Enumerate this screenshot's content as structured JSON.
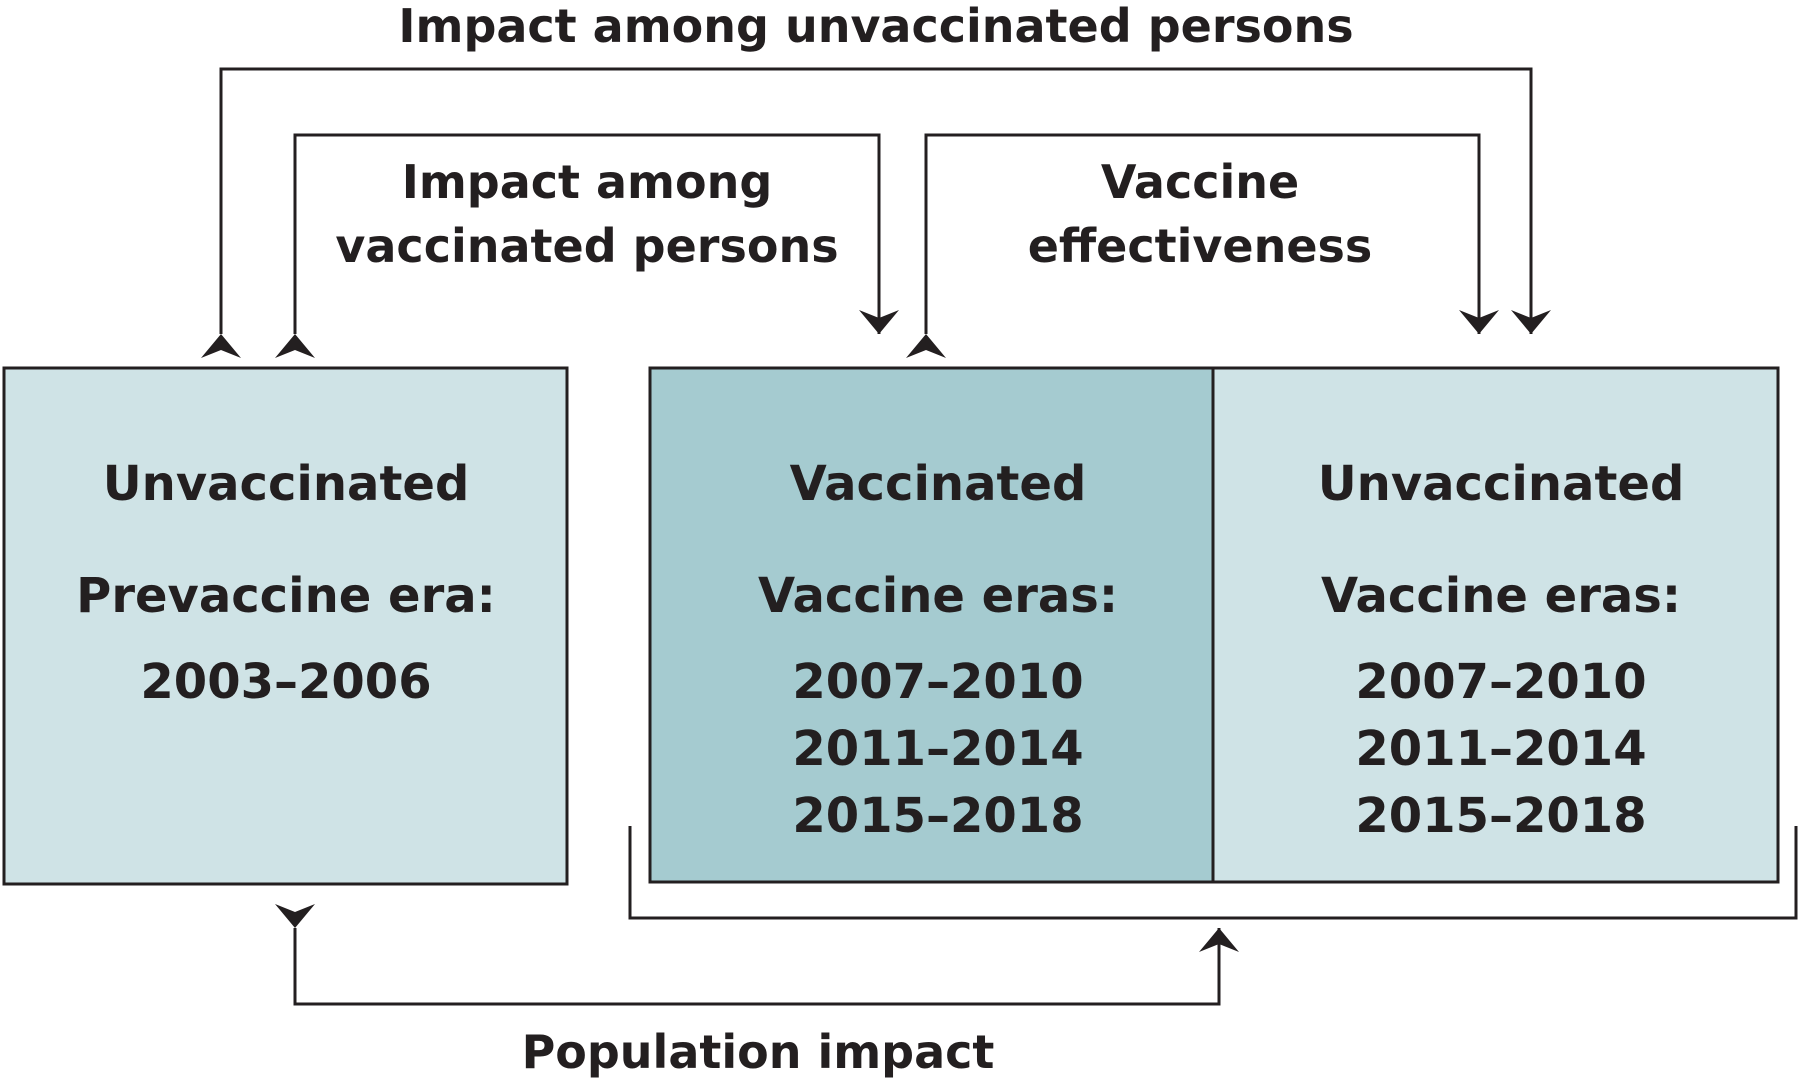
{
  "colors": {
    "light_box": "#cfe3e6",
    "dark_box": "#a5cbd0",
    "line": "#231f20",
    "text": "#231f20"
  },
  "arrows": {
    "unvaccinated_impact": "Impact among unvaccinated persons",
    "vaccinated_impact_line1": "Impact among",
    "vaccinated_impact_line2": "vaccinated persons",
    "effectiveness_line1": "Vaccine",
    "effectiveness_line2": "effectiveness",
    "population_impact": "Population impact"
  },
  "boxes": {
    "prevaccine": {
      "heading": "Unvaccinated",
      "era_label": "Prevaccine era:",
      "eras": [
        "2003–2006"
      ]
    },
    "vaccinated": {
      "heading": "Vaccinated",
      "era_label": "Vaccine eras:",
      "eras": [
        "2007–2010",
        "2011–2014",
        "2015–2018"
      ]
    },
    "unvaccinated_vaccine_era": {
      "heading": "Unvaccinated",
      "era_label": "Vaccine eras:",
      "eras": [
        "2007–2010",
        "2011–2014",
        "2015–2018"
      ]
    }
  }
}
